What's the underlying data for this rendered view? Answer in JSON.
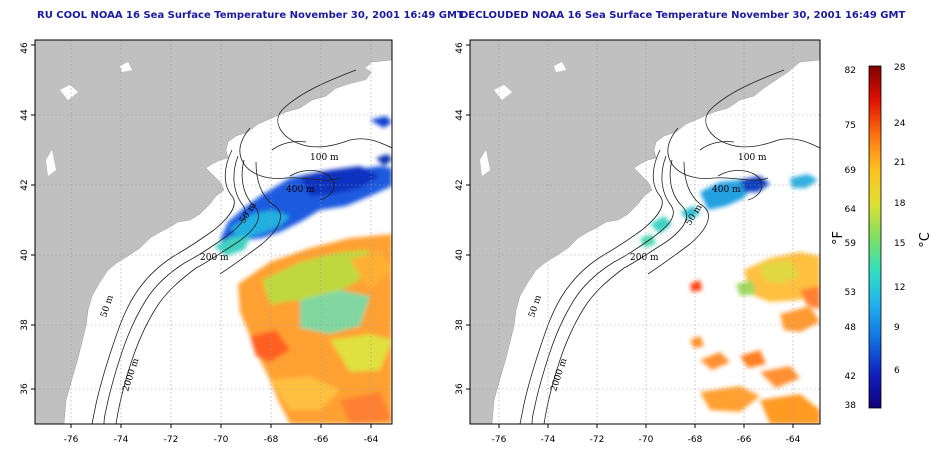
{
  "titles": {
    "left": "RU COOL NOAA 16 Sea Surface Temperature November 30, 2001 16:49 GMT",
    "right": "DECLOUDED NOAA 16 Sea Surface Temperature November 30, 2001 16:49 GMT"
  },
  "map": {
    "lon_range": [
      -77,
      -63
    ],
    "lat_range": [
      35,
      46
    ],
    "lon_ticks": [
      "-76",
      "-74",
      "-72",
      "-70",
      "-68",
      "-66",
      "-64"
    ],
    "lat_ticks": [
      "36",
      "38",
      "40",
      "42",
      "44",
      "46"
    ],
    "grid": "dotted",
    "land_color": "#c0c0c0",
    "contour_labels": {
      "left": [
        "100 m",
        "400 m",
        "50 m",
        "200 m",
        "50 m",
        "2000 m"
      ],
      "right": [
        "100 m",
        "400 m",
        "50 m",
        "200 m",
        "50 m",
        "2000 m"
      ]
    }
  },
  "colorbar": {
    "fahrenheit_labels": [
      "82",
      "75",
      "69",
      "64",
      "59",
      "53",
      "48",
      "42",
      "38"
    ],
    "celsius_labels": [
      "28",
      "24",
      "21",
      "18",
      "15",
      "12",
      "9",
      "6"
    ],
    "f_unit": "°F",
    "c_unit": "°C",
    "colors": [
      "#7f0000",
      "#d00000",
      "#ff4000",
      "#ff9a20",
      "#ffd040",
      "#c8e040",
      "#50e0a0",
      "#20c0e0",
      "#1070e0",
      "#1020c0",
      "#10007a"
    ]
  }
}
